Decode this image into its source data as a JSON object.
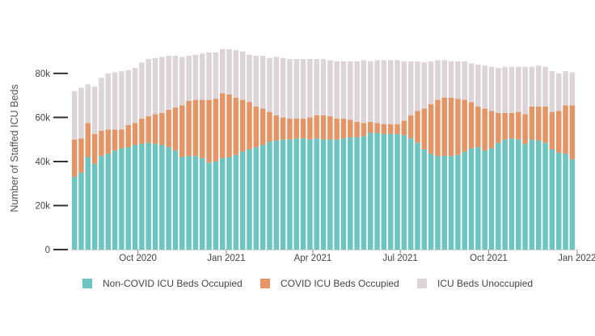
{
  "chart_data": {
    "type": "bar",
    "stacked": true,
    "x_start_week": "2020-07-27",
    "x_interval": "weekly",
    "xtick_labels": [
      "Oct 2020",
      "Jan 2021",
      "Apr 2021",
      "Jul 2021",
      "Oct 2021",
      "Jan 2022"
    ],
    "ylabel": "Number of Staffed ICU Beds",
    "ylim": [
      0,
      95000
    ],
    "ytick_labels": [
      "0",
      "20k",
      "40k",
      "60k",
      "80k"
    ],
    "ytick_values": [
      0,
      20000,
      40000,
      60000,
      80000
    ],
    "grid": false,
    "legend_position": "bottom",
    "series": [
      {
        "name": "Non-COVID ICU Beds Occupied",
        "color": "#6cc5c0",
        "values": [
          33000,
          35000,
          42000,
          39000,
          42500,
          43500,
          45000,
          46000,
          46500,
          47500,
          48000,
          48500,
          48000,
          47500,
          46500,
          45000,
          42000,
          42500,
          42500,
          41500,
          39500,
          40000,
          41500,
          42000,
          43000,
          44500,
          45500,
          46500,
          47500,
          49000,
          49500,
          50000,
          50000,
          50500,
          50500,
          50000,
          50500,
          50000,
          50000,
          50000,
          50500,
          51000,
          51000,
          51500,
          53000,
          53000,
          52500,
          52500,
          52500,
          52000,
          50500,
          48500,
          45500,
          43500,
          42500,
          42500,
          42500,
          43000,
          44500,
          46000,
          46500,
          45000,
          46000,
          48500,
          50000,
          50500,
          50000,
          48000,
          50000,
          49500,
          48500,
          45500,
          44000,
          43500,
          41000
        ]
      },
      {
        "name": "COVID ICU Beds Occupied",
        "color": "#e59565",
        "values": [
          17000,
          15500,
          15500,
          13500,
          11500,
          11000,
          9500,
          8500,
          10000,
          10000,
          11500,
          12000,
          13500,
          14500,
          17000,
          19500,
          23500,
          25000,
          25500,
          26500,
          28500,
          28500,
          29500,
          28500,
          26000,
          23500,
          21500,
          18500,
          16500,
          13500,
          11500,
          10000,
          9500,
          9000,
          9000,
          10000,
          10500,
          11000,
          10500,
          9500,
          9000,
          8000,
          7000,
          6000,
          5000,
          4500,
          4500,
          4500,
          4500,
          6500,
          10500,
          14500,
          18500,
          22500,
          25500,
          26500,
          26500,
          25500,
          23500,
          21000,
          18500,
          19000,
          17000,
          13500,
          12000,
          11500,
          12500,
          13500,
          15000,
          15500,
          16500,
          17000,
          19000,
          22000,
          24500
        ]
      },
      {
        "name": "ICU Beds Unoccupied",
        "color": "#dcd4d6",
        "values": [
          22000,
          23000,
          17500,
          21500,
          24000,
          25500,
          26000,
          26500,
          25000,
          25000,
          25500,
          26000,
          25500,
          25500,
          24500,
          23500,
          22000,
          20500,
          20500,
          21000,
          21500,
          21000,
          20000,
          20500,
          21500,
          22000,
          21500,
          23000,
          24000,
          24500,
          26500,
          27000,
          27000,
          27000,
          27000,
          26500,
          25500,
          25500,
          25500,
          26000,
          26000,
          26500,
          27500,
          28500,
          27500,
          28500,
          29000,
          29000,
          29000,
          27000,
          24500,
          22500,
          21000,
          19500,
          18000,
          17000,
          16500,
          17000,
          17500,
          17500,
          19000,
          19500,
          20000,
          20500,
          21000,
          21000,
          20500,
          21500,
          18000,
          18500,
          18000,
          18500,
          17000,
          15500,
          15000
        ]
      }
    ]
  }
}
